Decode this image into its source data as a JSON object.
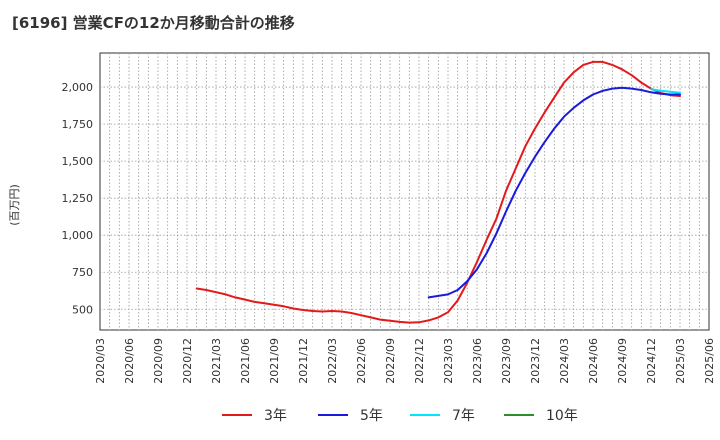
{
  "chart_data": {
    "type": "line",
    "title": "[6196]  営業CFの12か月移動合計の推移",
    "ylabel": "(百万円)",
    "xlabel": "",
    "ylim": [
      360,
      2230
    ],
    "yticks": [
      500,
      750,
      1000,
      1250,
      1500,
      1750,
      2000
    ],
    "ytick_labels": [
      "500",
      "750",
      "1,000",
      "1,250",
      "1,500",
      "1,750",
      "2,000"
    ],
    "x_range": [
      "2020/03",
      "2025/06"
    ],
    "x_ticks": [
      "2020/03",
      "2020/06",
      "2020/09",
      "2020/12",
      "2021/03",
      "2021/06",
      "2021/09",
      "2021/12",
      "2022/03",
      "2022/06",
      "2022/09",
      "2022/12",
      "2023/03",
      "2023/06",
      "2023/09",
      "2023/12",
      "2024/03",
      "2024/06",
      "2024/09",
      "2024/12",
      "2025/03",
      "2025/06"
    ],
    "grid": true,
    "legend_position": "bottom",
    "series": [
      {
        "name": "3年",
        "color": "#e31a1c",
        "x": [
          "2021/01",
          "2021/02",
          "2021/03",
          "2021/04",
          "2021/05",
          "2021/06",
          "2021/07",
          "2021/08",
          "2021/09",
          "2021/10",
          "2021/11",
          "2021/12",
          "2022/01",
          "2022/02",
          "2022/03",
          "2022/04",
          "2022/05",
          "2022/06",
          "2022/07",
          "2022/08",
          "2022/09",
          "2022/10",
          "2022/11",
          "2022/12",
          "2023/01",
          "2023/02",
          "2023/03",
          "2023/04",
          "2023/05",
          "2023/06",
          "2023/07",
          "2023/08",
          "2023/09",
          "2023/10",
          "2023/11",
          "2023/12",
          "2024/01",
          "2024/02",
          "2024/03",
          "2024/04",
          "2024/05",
          "2024/06",
          "2024/07",
          "2024/08",
          "2024/09",
          "2024/10",
          "2024/11",
          "2024/12",
          "2025/01",
          "2025/02",
          "2025/03"
        ],
        "values": [
          640,
          630,
          615,
          600,
          580,
          565,
          550,
          540,
          530,
          520,
          505,
          495,
          488,
          485,
          488,
          485,
          475,
          460,
          445,
          430,
          422,
          415,
          410,
          412,
          425,
          445,
          480,
          560,
          680,
          820,
          970,
          1110,
          1300,
          1450,
          1600,
          1720,
          1830,
          1930,
          2030,
          2100,
          2150,
          2170,
          2170,
          2150,
          2120,
          2080,
          2030,
          1990,
          1960,
          1945,
          1940
        ]
      },
      {
        "name": "5年",
        "color": "#1a1adc",
        "x": [
          "2023/01",
          "2023/02",
          "2023/03",
          "2023/04",
          "2023/05",
          "2023/06",
          "2023/07",
          "2023/08",
          "2023/09",
          "2023/10",
          "2023/11",
          "2023/12",
          "2024/01",
          "2024/02",
          "2024/03",
          "2024/04",
          "2024/05",
          "2024/06",
          "2024/07",
          "2024/08",
          "2024/09",
          "2024/10",
          "2024/11",
          "2024/12",
          "2025/01",
          "2025/02",
          "2025/03"
        ],
        "values": [
          580,
          590,
          600,
          630,
          690,
          770,
          880,
          1010,
          1160,
          1300,
          1420,
          1530,
          1630,
          1720,
          1800,
          1860,
          1910,
          1950,
          1975,
          1990,
          1995,
          1990,
          1980,
          1965,
          1955,
          1950,
          1950
        ]
      },
      {
        "name": "7年",
        "color": "#00e5ff",
        "x": [
          "2024/12",
          "2025/01",
          "2025/02",
          "2025/03"
        ],
        "values": [
          1985,
          1975,
          1968,
          1962
        ]
      },
      {
        "name": "10年",
        "color": "#2e8b2e",
        "x": [],
        "values": []
      }
    ]
  }
}
